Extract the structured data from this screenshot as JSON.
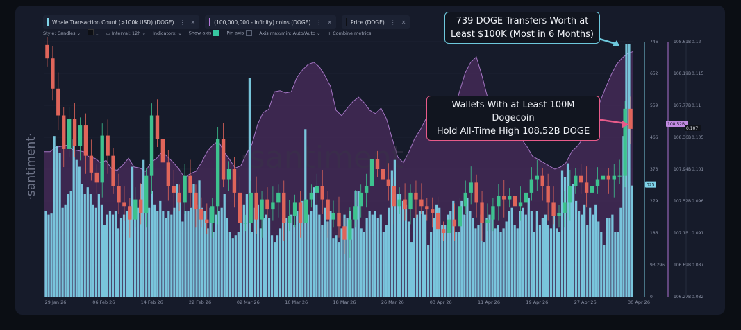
{
  "legend": [
    {
      "label": "Whale Transaction Count (>100k USD) (DOGE)",
      "color": "#7fd3e8"
    },
    {
      "label": "(100,000,000 - infinity) coins (DOGE)",
      "color": "#b478d9"
    },
    {
      "label": "Price (DOGE)",
      "color": "#1d1d1d"
    }
  ],
  "toolbar": {
    "style": "Style: Candles",
    "interval": "Interval: 12h",
    "indicators": "Indicators:",
    "show_axis": "Show axis",
    "pin_axis": "Pin axis",
    "axis_minmax": "Axis max/min: Auto/Auto",
    "combine": "Combine metrics"
  },
  "watermark": "·santiment·",
  "callouts": {
    "top": "739 DOGE Transfers Worth at Least $100K (Most in 6 Months)",
    "top_line1": "739 DOGE Transfers Worth at",
    "top_line2": "Least $100K (Most in 6 Months)",
    "mid_line1": "Wallets With at Least 100M Dogecoin",
    "mid_line2": "Hold All-Time High 108.52B DOGE"
  },
  "axes": {
    "whale_ticks": [
      "746",
      "652",
      "559",
      "466",
      "373",
      "279",
      "186",
      "93.296",
      "0"
    ],
    "holdings_ticks": [
      "108.61B",
      "108.19B",
      "107.77B",
      "108.36B",
      "107.94B",
      "107.52B",
      "107.1B",
      "106.69B",
      "106.27B"
    ],
    "price_ticks": [
      "0.12",
      "0.115",
      "0.11",
      "0.105",
      "0.101",
      "0.096",
      "0.091",
      "0.087",
      "0.082"
    ],
    "current_whale": "325",
    "current_holdings": "108.52B",
    "current_price": "0.107"
  },
  "colors": {
    "whale": "#7fd3e8",
    "holdings": "#b478d9",
    "up_candle": "#3ec28f",
    "down_candle": "#e0655a",
    "pink": "#e85b8a"
  },
  "chart_data": {
    "type": "bar",
    "x_labels": [
      "29 Jan 26",
      "06 Feb 26",
      "14 Feb 26",
      "22 Feb 26",
      "02 Mar 26",
      "10 Mar 26",
      "18 Mar 26",
      "26 Mar 26",
      "03 Apr 26",
      "11 Apr 26",
      "19 Apr 26",
      "27 Apr 26",
      "30 Apr 26"
    ],
    "whale_ylim": [
      0,
      746
    ],
    "holdings_ylim_B": [
      106.27,
      108.61
    ],
    "price_ylim": [
      0.082,
      0.12
    ],
    "series": [
      {
        "name": "Whale Transaction Count (>100k USD) (DOGE)",
        "kind": "bar",
        "values": [
          250,
          240,
          245,
          470,
          440,
          420,
          260,
          270,
          300,
          310,
          460,
          400,
          380,
          330,
          300,
          320,
          300,
          270,
          260,
          300,
          270,
          210,
          240,
          250,
          240,
          250,
          200,
          230,
          240,
          250,
          260,
          380,
          280,
          260,
          330,
          400,
          340,
          260,
          310,
          270,
          250,
          280,
          250,
          230,
          250,
          240,
          260,
          330,
          280,
          220,
          250,
          250,
          260,
          330,
          270,
          340,
          260,
          250,
          200,
          260,
          190,
          240,
          250,
          260,
          300,
          230,
          190,
          170,
          180,
          190,
          260,
          270,
          300,
          640,
          190,
          260,
          270,
          200,
          230,
          240,
          230,
          180,
          160,
          180,
          200,
          230,
          230,
          230,
          240,
          210,
          250,
          270,
          280,
          490,
          240,
          250,
          320,
          270,
          240,
          210,
          260,
          220,
          250,
          170,
          180,
          160,
          200,
          240,
          230,
          250,
          200,
          310,
          310,
          200,
          190,
          230,
          250,
          240,
          250,
          230,
          240,
          190,
          210,
          260,
          370,
          400,
          300,
          300,
          280,
          270,
          220,
          160,
          230,
          240,
          250,
          250,
          240,
          150,
          190,
          230,
          270,
          260,
          210,
          210,
          240,
          250,
          280,
          190,
          190,
          280,
          240,
          290,
          250,
          230,
          200,
          210,
          240,
          160,
          230,
          240,
          230,
          200,
          210,
          190,
          200,
          220,
          250,
          260,
          210,
          200,
          250,
          260,
          240,
          290,
          250,
          190,
          250,
          210,
          230,
          240,
          210,
          200,
          270,
          200,
          190,
          370,
          350,
          390,
          300,
          330,
          280,
          250,
          240,
          270,
          210,
          260,
          240,
          270,
          220,
          190,
          150,
          230,
          230,
          240,
          190,
          190,
          260,
          470,
          739,
          739,
          325
        ]
      },
      {
        "name": "(100,000,000 - infinity) coins (DOGE)",
        "kind": "area",
        "values_B": [
          107.6,
          107.6,
          107.64,
          107.65,
          107.66,
          107.62,
          107.61,
          107.6,
          107.55,
          107.54,
          107.5,
          107.52,
          107.44,
          107.43,
          107.48,
          107.54,
          107.46,
          107.45,
          107.42,
          107.5,
          107.54,
          107.6,
          107.55,
          107.5,
          107.44,
          107.36,
          107.4,
          107.42,
          107.5,
          107.6,
          107.66,
          107.7,
          107.6,
          107.53,
          107.45,
          107.47,
          107.58,
          107.67,
          107.85,
          107.96,
          107.99,
          108.15,
          108.16,
          108.14,
          108.15,
          108.28,
          108.35,
          108.4,
          108.42,
          108.38,
          108.3,
          108.2,
          107.98,
          107.93,
          108.0,
          108.06,
          108.1,
          108.05,
          107.98,
          107.95,
          108.0,
          107.9,
          107.72,
          107.55,
          107.5,
          107.6,
          107.72,
          107.8,
          107.9,
          107.96,
          107.9,
          107.8,
          107.85,
          107.98,
          108.15,
          108.32,
          108.42,
          108.47,
          108.3,
          108.1,
          108.0,
          107.97,
          107.93,
          107.86,
          107.78,
          107.72,
          107.65,
          107.56,
          107.53,
          107.5,
          107.47,
          107.44,
          107.46,
          107.5,
          107.6,
          107.65,
          107.72,
          107.82,
          107.9,
          108.05,
          108.18,
          108.3,
          108.4,
          108.46,
          108.5,
          108.52
        ]
      },
      {
        "name": "Price (DOGE)",
        "kind": "candles",
        "values": [
          0.1175,
          0.113,
          0.109,
          0.104,
          0.1085,
          0.1045,
          0.1075,
          0.103,
          0.1005,
          0.099,
          0.106,
          0.103,
          0.0985,
          0.096,
          0.0955,
          0.0935,
          0.0965,
          0.0945,
          0.1,
          0.109,
          0.1055,
          0.102,
          0.0985,
          0.0975,
          0.096,
          0.1,
          0.0975,
          0.095,
          0.0935,
          0.093,
          0.0955,
          0.1055,
          0.0995,
          0.101,
          0.0975,
          0.093,
          0.093,
          0.0975,
          0.0935,
          0.0965,
          0.095,
          0.096,
          0.0975,
          0.093,
          0.094,
          0.096,
          0.093,
          0.0965,
          0.0975,
          0.0985,
          0.0965,
          0.0935,
          0.0945,
          0.0925,
          0.0905,
          0.0935,
          0.0955,
          0.0975,
          0.0985,
          0.1025,
          0.101,
          0.0995,
          0.0985,
          0.0955,
          0.0965,
          0.095,
          0.0975,
          0.0965,
          0.0955,
          0.095,
          0.0945,
          0.092,
          0.0915,
          0.0935,
          0.0925,
          0.0955,
          0.0975,
          0.099,
          0.096,
          0.093,
          0.0935,
          0.0955,
          0.097,
          0.0965,
          0.097,
          0.0955,
          0.096,
          0.0975,
          0.0995,
          0.1,
          0.0985,
          0.096,
          0.094,
          0.0945,
          0.096,
          0.0985,
          0.1,
          0.099,
          0.0975,
          0.0985,
          0.0995,
          0.1,
          0.0995,
          0.1,
          0.1,
          0.11,
          0.107
        ]
      }
    ]
  }
}
